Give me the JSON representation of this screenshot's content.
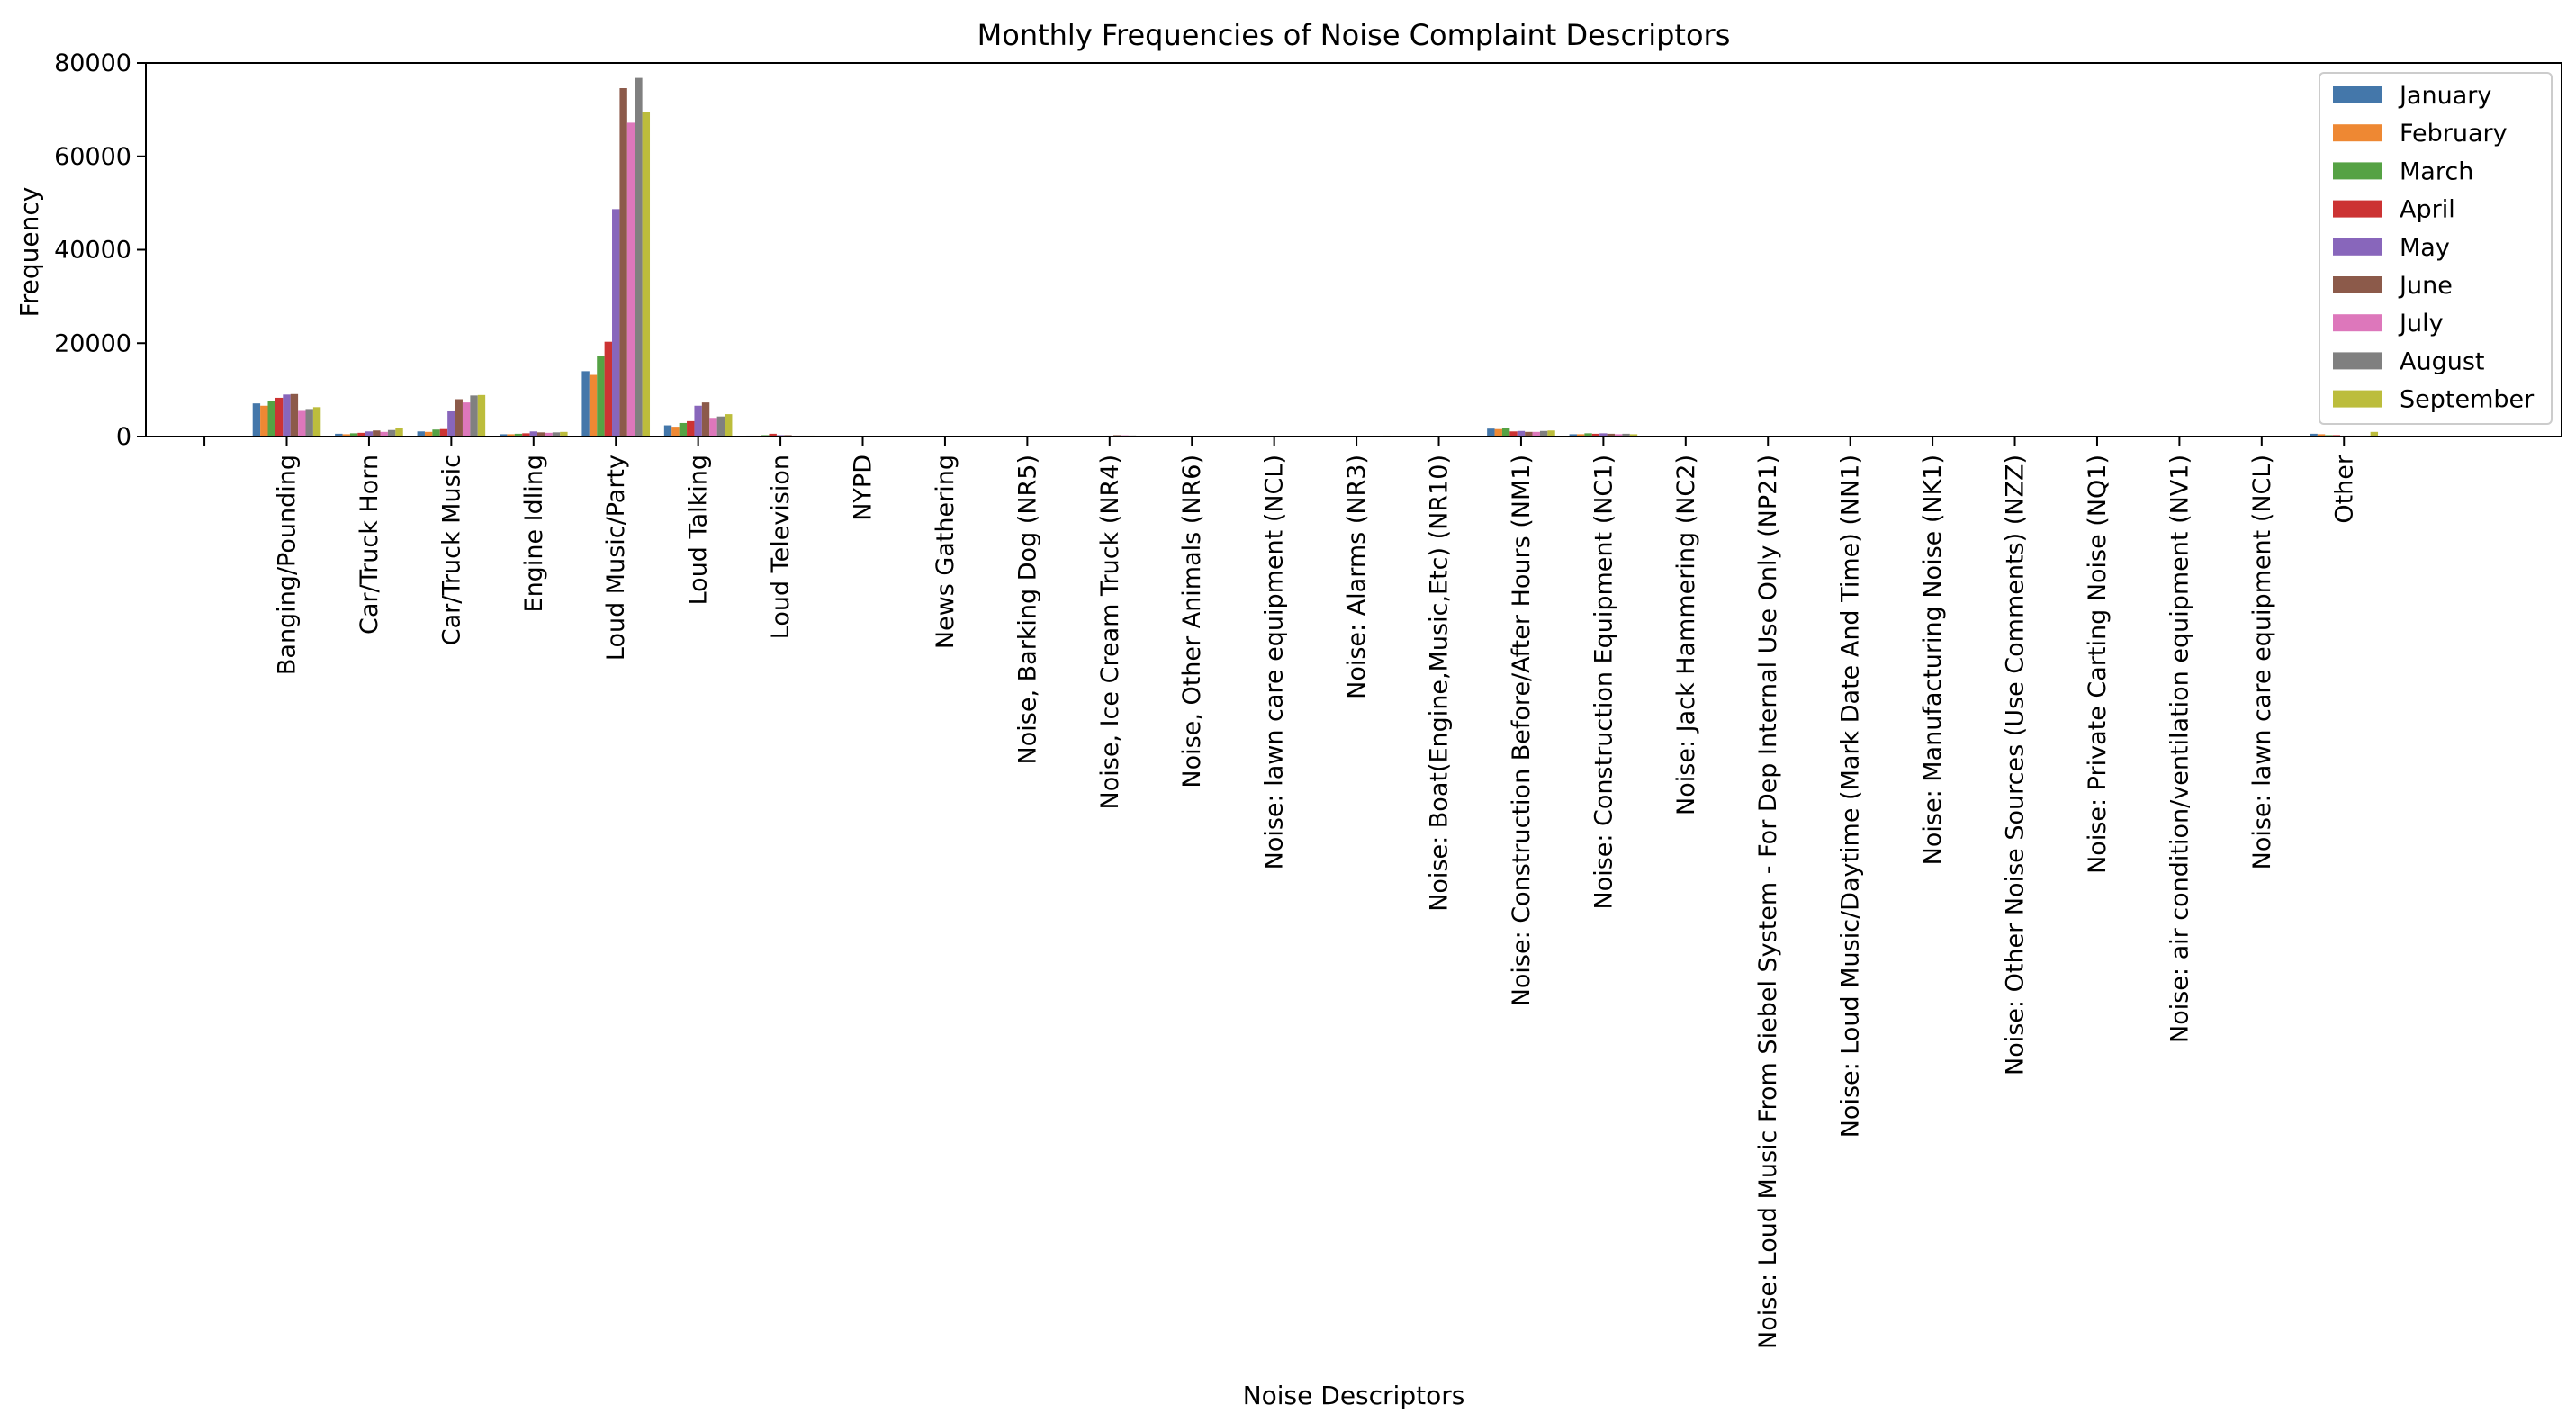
{
  "chart_data": {
    "type": "bar",
    "title": "Monthly Frequencies of Noise Complaint Descriptors",
    "xlabel": "Noise Descriptors",
    "ylabel": "Frequency",
    "ylim": [
      0,
      80000
    ],
    "yticks": [
      0,
      20000,
      40000,
      60000,
      80000
    ],
    "yticklabels": [
      "0",
      "20000",
      "40000",
      "60000",
      "80000"
    ],
    "legend_position": "top-right",
    "grid": false,
    "categories": [
      "",
      "Banging/Pounding",
      "Car/Truck Horn",
      "Car/Truck Music",
      "Engine Idling",
      "Loud Music/Party",
      "Loud Talking",
      "Loud Television",
      "NYPD",
      "News Gathering",
      "Noise, Barking Dog (NR5)",
      "Noise, Ice Cream Truck (NR4)",
      "Noise, Other Animals (NR6)",
      "Noise:  lawn care equipment (NCL)",
      "Noise: Alarms (NR3)",
      "Noise: Boat(Engine,Music,Etc) (NR10)",
      "Noise: Construction Before/After Hours (NM1)",
      "Noise: Construction Equipment (NC1)",
      "Noise: Jack Hammering (NC2)",
      "Noise: Loud Music From Siebel System - For Dep Internal Use Only (NP21)",
      "Noise: Loud Music/Daytime (Mark Date And Time) (NN1)",
      "Noise: Manufacturing Noise (NK1)",
      "Noise: Other Noise Sources (Use Comments) (NZZ)",
      "Noise: Private Carting Noise (NQ1)",
      "Noise: air condition/ventilation equipment (NV1)",
      "Noise: lawn care equipment (NCL)",
      "Other"
    ],
    "series": [
      {
        "name": "January",
        "color": "#4477aa",
        "values": [
          0,
          7100,
          600,
          1100,
          500,
          14000,
          2400,
          200,
          20,
          10,
          80,
          20,
          10,
          0,
          20,
          0,
          1700,
          500,
          50,
          0,
          0,
          0,
          0,
          0,
          0,
          0,
          600
        ]
      },
      {
        "name": "February",
        "color": "#ee8833",
        "values": [
          0,
          6600,
          500,
          1000,
          500,
          13200,
          2100,
          200,
          20,
          10,
          60,
          20,
          10,
          0,
          20,
          0,
          1600,
          500,
          50,
          0,
          0,
          0,
          0,
          0,
          0,
          0,
          500
        ]
      },
      {
        "name": "March",
        "color": "#55a244",
        "values": [
          0,
          7700,
          700,
          1500,
          600,
          17300,
          2900,
          300,
          30,
          10,
          90,
          40,
          10,
          0,
          30,
          10,
          1800,
          700,
          60,
          0,
          0,
          0,
          0,
          0,
          0,
          0,
          300
        ]
      },
      {
        "name": "April",
        "color": "#cc3333",
        "values": [
          0,
          8300,
          800,
          1600,
          700,
          20300,
          3300,
          600,
          30,
          10,
          100,
          80,
          20,
          0,
          30,
          10,
          1100,
          600,
          60,
          0,
          0,
          0,
          0,
          0,
          0,
          0,
          300
        ]
      },
      {
        "name": "May",
        "color": "#8866bb",
        "values": [
          0,
          9000,
          1100,
          5400,
          1100,
          48700,
          6600,
          300,
          40,
          10,
          120,
          200,
          20,
          0,
          30,
          20,
          1200,
          700,
          70,
          0,
          0,
          0,
          0,
          0,
          0,
          0,
          200
        ]
      },
      {
        "name": "June",
        "color": "#8c5a4a",
        "values": [
          0,
          9100,
          1300,
          8000,
          900,
          74600,
          7300,
          300,
          40,
          10,
          130,
          300,
          20,
          0,
          40,
          30,
          1000,
          600,
          60,
          0,
          0,
          0,
          0,
          0,
          0,
          0,
          200
        ]
      },
      {
        "name": "July",
        "color": "#dd77bb",
        "values": [
          0,
          5500,
          1000,
          7300,
          800,
          67200,
          4000,
          200,
          30,
          10,
          110,
          260,
          20,
          0,
          30,
          30,
          1000,
          500,
          50,
          0,
          0,
          0,
          0,
          0,
          0,
          0,
          200
        ]
      },
      {
        "name": "August",
        "color": "#808080",
        "values": [
          0,
          5900,
          1400,
          8800,
          900,
          76800,
          4300,
          200,
          30,
          10,
          100,
          220,
          20,
          0,
          30,
          30,
          1200,
          600,
          50,
          0,
          0,
          0,
          0,
          0,
          0,
          0,
          200
        ]
      },
      {
        "name": "September",
        "color": "#bcbd3c",
        "values": [
          0,
          6300,
          1800,
          8900,
          1000,
          69500,
          4800,
          200,
          30,
          10,
          100,
          160,
          20,
          0,
          200,
          20,
          1300,
          500,
          50,
          0,
          0,
          0,
          0,
          0,
          0,
          0,
          1000
        ]
      }
    ]
  }
}
